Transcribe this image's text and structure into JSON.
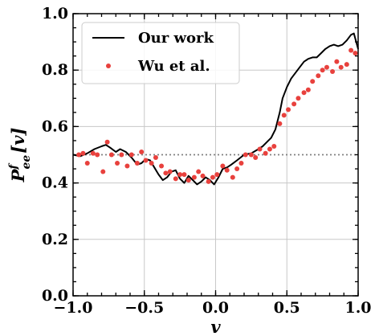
{
  "chart_data": {
    "type": "line",
    "title": "",
    "xlabel": "v",
    "ylabel": {
      "base": "P",
      "superscript": "f",
      "subscript": "ee",
      "argument": "[v]"
    },
    "xlim": [
      -1.0,
      1.0
    ],
    "ylim": [
      0.0,
      1.0
    ],
    "x_ticks": [
      "−1.0",
      "−0.5",
      "0.0",
      "0.5",
      "1.0"
    ],
    "x_tick_values": [
      -1.0,
      -0.5,
      0.0,
      0.5,
      1.0
    ],
    "y_ticks": [
      "0.0",
      "0.2",
      "0.4",
      "0.6",
      "0.8",
      "1.0"
    ],
    "y_tick_values": [
      0.0,
      0.2,
      0.4,
      0.6,
      0.8,
      1.0
    ],
    "grid": true,
    "legend_position": "upper-left",
    "reference_line": {
      "y": 0.5,
      "style": "dotted",
      "color": "#808080"
    },
    "series": [
      {
        "name": "Our work",
        "kind": "line",
        "color": "#000000",
        "x": [
          -1.0,
          -0.95,
          -0.9,
          -0.85,
          -0.8,
          -0.77,
          -0.74,
          -0.7,
          -0.67,
          -0.63,
          -0.59,
          -0.55,
          -0.52,
          -0.49,
          -0.46,
          -0.43,
          -0.4,
          -0.37,
          -0.34,
          -0.31,
          -0.28,
          -0.25,
          -0.22,
          -0.19,
          -0.16,
          -0.13,
          -0.1,
          -0.07,
          -0.04,
          -0.01,
          0.02,
          0.05,
          0.08,
          0.11,
          0.15,
          0.2,
          0.25,
          0.3,
          0.33,
          0.36,
          0.39,
          0.42,
          0.45,
          0.47,
          0.5,
          0.53,
          0.56,
          0.59,
          0.62,
          0.65,
          0.68,
          0.71,
          0.74,
          0.77,
          0.8,
          0.83,
          0.86,
          0.89,
          0.92,
          0.95,
          0.97,
          1.0
        ],
        "y": [
          0.5,
          0.495,
          0.505,
          0.52,
          0.53,
          0.535,
          0.525,
          0.51,
          0.52,
          0.51,
          0.49,
          0.465,
          0.47,
          0.485,
          0.48,
          0.455,
          0.43,
          0.41,
          0.42,
          0.44,
          0.445,
          0.415,
          0.4,
          0.425,
          0.41,
          0.395,
          0.405,
          0.42,
          0.41,
          0.395,
          0.42,
          0.45,
          0.455,
          0.465,
          0.48,
          0.5,
          0.505,
          0.52,
          0.53,
          0.545,
          0.56,
          0.59,
          0.65,
          0.7,
          0.74,
          0.77,
          0.79,
          0.81,
          0.83,
          0.84,
          0.845,
          0.845,
          0.86,
          0.875,
          0.885,
          0.89,
          0.885,
          0.89,
          0.905,
          0.925,
          0.93,
          0.875
        ]
      },
      {
        "name": "Wu et al.",
        "kind": "scatter",
        "color": "#e8413d",
        "x": [
          -0.96,
          -0.93,
          -0.9,
          -0.86,
          -0.83,
          -0.79,
          -0.76,
          -0.73,
          -0.69,
          -0.66,
          -0.62,
          -0.59,
          -0.55,
          -0.52,
          -0.49,
          -0.45,
          -0.42,
          -0.38,
          -0.35,
          -0.32,
          -0.28,
          -0.25,
          -0.22,
          -0.19,
          -0.15,
          -0.12,
          -0.09,
          -0.05,
          -0.02,
          0.01,
          0.05,
          0.08,
          0.12,
          0.15,
          0.18,
          0.21,
          0.25,
          0.28,
          0.31,
          0.35,
          0.38,
          0.41,
          0.45,
          0.48,
          0.51,
          0.55,
          0.58,
          0.62,
          0.65,
          0.68,
          0.72,
          0.75,
          0.78,
          0.82,
          0.85,
          0.88,
          0.92,
          0.95,
          0.98
        ],
        "y": [
          0.5,
          0.505,
          0.47,
          0.505,
          0.5,
          0.44,
          0.545,
          0.5,
          0.47,
          0.5,
          0.46,
          0.5,
          0.47,
          0.51,
          0.48,
          0.47,
          0.49,
          0.46,
          0.435,
          0.44,
          0.415,
          0.43,
          0.43,
          0.41,
          0.42,
          0.44,
          0.425,
          0.405,
          0.42,
          0.43,
          0.46,
          0.445,
          0.42,
          0.45,
          0.47,
          0.5,
          0.5,
          0.49,
          0.52,
          0.505,
          0.52,
          0.53,
          0.61,
          0.64,
          0.66,
          0.68,
          0.7,
          0.72,
          0.73,
          0.76,
          0.78,
          0.8,
          0.81,
          0.795,
          0.83,
          0.81,
          0.82,
          0.87,
          0.86
        ]
      }
    ]
  }
}
